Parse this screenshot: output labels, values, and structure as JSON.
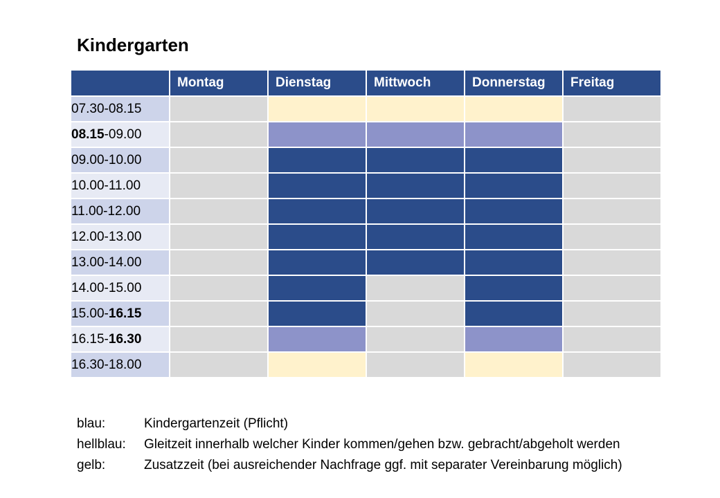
{
  "title": "Kindergarten",
  "colors": {
    "header": "#2b4c8a",
    "blue": "#2b4c8a",
    "lightblue": "#8d93c9",
    "yellow": "#fff2cc",
    "grey": "#d9d9d9",
    "time_odd": "#cdd4ea",
    "time_even": "#e7eaf4"
  },
  "table": {
    "corner": "",
    "days": [
      "Montag",
      "Dienstag",
      "Mittwoch",
      "Donnerstag",
      "Freitag"
    ],
    "rows": [
      {
        "time_start": "07.30",
        "time_sep": "-",
        "time_end": "08.15",
        "bold": "",
        "cells": [
          "grey",
          "yellow",
          "yellow",
          "yellow",
          "grey"
        ]
      },
      {
        "time_start": "08.15",
        "time_sep": "-",
        "time_end": "09.00",
        "bold": "start",
        "cells": [
          "grey",
          "lightblue",
          "lightblue",
          "lightblue",
          "grey"
        ]
      },
      {
        "time_start": "09.00",
        "time_sep": "-",
        "time_end": "10.00",
        "bold": "",
        "cells": [
          "grey",
          "blue",
          "blue",
          "blue",
          "grey"
        ]
      },
      {
        "time_start": "10.00",
        "time_sep": "-",
        "time_end": "11.00",
        "bold": "",
        "cells": [
          "grey",
          "blue",
          "blue",
          "blue",
          "grey"
        ]
      },
      {
        "time_start": "11.00",
        "time_sep": "-",
        "time_end": "12.00",
        "bold": "",
        "cells": [
          "grey",
          "blue",
          "blue",
          "blue",
          "grey"
        ]
      },
      {
        "time_start": "12.00",
        "time_sep": "-",
        "time_end": "13.00",
        "bold": "",
        "cells": [
          "grey",
          "blue",
          "blue",
          "blue",
          "grey"
        ]
      },
      {
        "time_start": "13.00",
        "time_sep": "-",
        "time_end": "14.00",
        "bold": "",
        "cells": [
          "grey",
          "blue",
          "blue",
          "blue",
          "grey"
        ]
      },
      {
        "time_start": "14.00",
        "time_sep": "-",
        "time_end": "15.00",
        "bold": "",
        "cells": [
          "grey",
          "blue",
          "grey",
          "blue",
          "grey"
        ]
      },
      {
        "time_start": "15.00",
        "time_sep": "-",
        "time_end": "16.15",
        "bold": "end",
        "cells": [
          "grey",
          "blue",
          "grey",
          "blue",
          "grey"
        ]
      },
      {
        "time_start": "16.15",
        "time_sep": "-",
        "time_end": "16.30",
        "bold": "end",
        "cells": [
          "grey",
          "lightblue",
          "grey",
          "lightblue",
          "grey"
        ]
      },
      {
        "time_start": "16.30",
        "time_sep": "-",
        "time_end": "18.00",
        "bold": "",
        "cells": [
          "grey",
          "yellow",
          "grey",
          "yellow",
          "grey"
        ]
      }
    ]
  },
  "legend": [
    {
      "key": "blau:",
      "text": "Kindergartenzeit (Pflicht)"
    },
    {
      "key": "hellblau:",
      "text": "Gleitzeit innerhalb welcher Kinder kommen/gehen bzw. gebracht/abgeholt werden"
    },
    {
      "key": "gelb:",
      "text": "Zusatzzeit (bei ausreichender Nachfrage ggf.  mit separater Vereinbarung möglich)"
    }
  ]
}
